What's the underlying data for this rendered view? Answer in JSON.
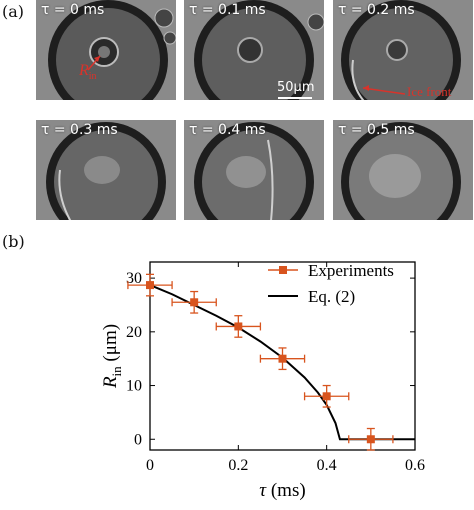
{
  "panels": {
    "a_label": "(a)",
    "b_label": "(b)",
    "frames": [
      {
        "time_label": "τ = 0 ms"
      },
      {
        "time_label": "τ = 0.1 ms"
      },
      {
        "time_label": "τ = 0.2 ms"
      },
      {
        "time_label": "τ = 0.3 ms"
      },
      {
        "time_label": "τ = 0.4 ms"
      },
      {
        "time_label": "τ = 0.5 ms"
      }
    ],
    "annotations": {
      "r_in_main": "R",
      "r_in_sub": "in",
      "scale_bar": "50μm",
      "ice_front": "Ice front"
    }
  },
  "colors": {
    "marker": "#d8541e",
    "fit_line": "#000000",
    "annotation": "#d8332b"
  },
  "chart_data": {
    "type": "scatter",
    "x": [
      0,
      0.1,
      0.2,
      0.3,
      0.4,
      0.5
    ],
    "series": [
      {
        "name": "Experiments",
        "values": [
          28.7,
          25.5,
          21,
          15,
          8,
          0
        ],
        "x_error": [
          0.05,
          0.05,
          0.05,
          0.05,
          0.05,
          0.05
        ],
        "y_error": [
          2,
          2,
          2,
          2,
          2,
          2
        ]
      },
      {
        "name": "Eq. (2)",
        "type": "line",
        "x": [
          0,
          0.05,
          0.1,
          0.15,
          0.2,
          0.25,
          0.3,
          0.35,
          0.38,
          0.4,
          0.42,
          0.43,
          0.45,
          0.5,
          0.6
        ],
        "values": [
          28.7,
          27.0,
          25.0,
          23.0,
          20.8,
          18.2,
          15.2,
          11.5,
          8.7,
          6.4,
          3.0,
          0,
          0,
          0,
          0
        ]
      }
    ],
    "xlabel_main": "τ",
    "xlabel_unit": "(ms)",
    "ylabel_main": "R",
    "ylabel_sub": "in",
    "ylabel_unit": "(μm)",
    "xlim": [
      0,
      0.6
    ],
    "ylim": [
      -2,
      33
    ],
    "xticks": [
      "0",
      "0.2",
      "0.4",
      "0.6"
    ],
    "xtick_values": [
      0,
      0.2,
      0.4,
      0.6
    ],
    "yticks": [
      "0",
      "10",
      "20",
      "30"
    ],
    "ytick_values": [
      0,
      10,
      20,
      30
    ],
    "legend": "top-right",
    "grid": false
  }
}
